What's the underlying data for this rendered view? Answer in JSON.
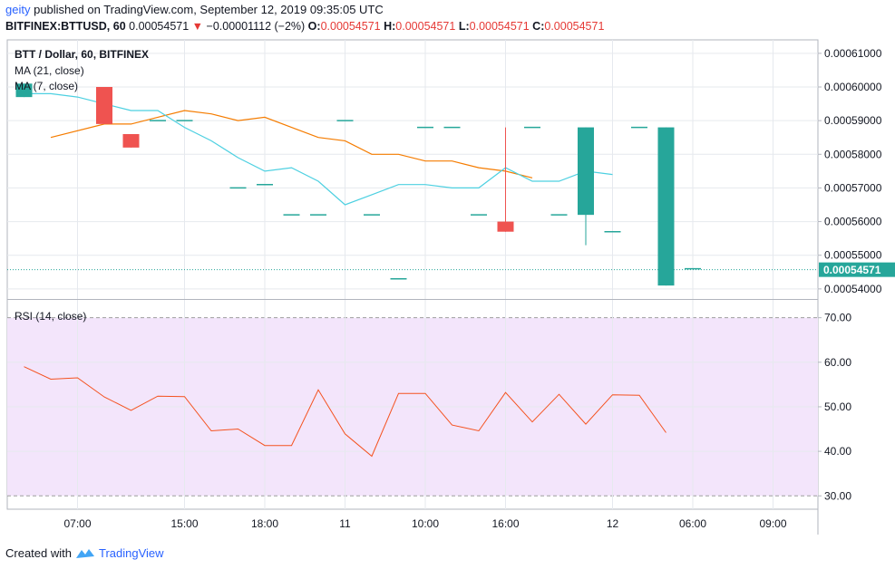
{
  "header": {
    "user": "geity",
    "published_text": "published on TradingView.com, September 12, 2019 09:35:05 UTC",
    "symbol": "BITFINEX:BTTUSD, 60",
    "last_price": "0.00054571",
    "change_arrow": "▼",
    "change": "−0.00001112 (−2%)",
    "o_label": "O:",
    "o_value": "0.00054571",
    "h_label": "H:",
    "h_value": "0.00054571",
    "l_label": "L:",
    "l_value": "0.00054571",
    "c_label": "C:",
    "c_value": "0.00054571"
  },
  "footer": {
    "created_with": "Created with",
    "brand": "TradingView"
  },
  "colors": {
    "up": "#26a69a",
    "down": "#ef5350",
    "ma21": "#f57c00",
    "ma7": "#4dd0e1",
    "rsi": "#f4511e",
    "rsi_band": "#f3e5fb",
    "grid": "#e6e9ee"
  },
  "chart_data": [
    {
      "type": "candlestick",
      "title": "BTT / Dollar, 60, BITFINEX",
      "legend": [
        "MA (21, close)",
        "MA (7, close)"
      ],
      "ylim": [
        0.000537,
        0.000614
      ],
      "y_ticks": [
        "0.00054000",
        "0.00055000",
        "0.00056000",
        "0.00057000",
        "0.00058000",
        "0.00059000",
        "0.00060000",
        "0.00061000"
      ],
      "y_tick_values": [
        0.00054,
        0.00055,
        0.00056,
        0.00057,
        0.00058,
        0.00059,
        0.0006,
        0.00061
      ],
      "x_ticks": [
        "07:00",
        "15:00",
        "18:00",
        "11",
        "10:00",
        "16:00",
        "12",
        "06:00",
        "09:00"
      ],
      "x_tick_index": [
        2,
        6,
        9,
        12,
        15,
        18,
        22,
        25,
        28
      ],
      "last_price_label": "0.00054571",
      "candles": [
        {
          "o": 0.000597,
          "h": 0.000601,
          "l": 0.000597,
          "c": 0.000601
        },
        null,
        null,
        {
          "o": 0.0006,
          "h": 0.0006,
          "l": 0.000589,
          "c": 0.000589
        },
        {
          "o": 0.000586,
          "h": 0.000586,
          "l": 0.000582,
          "c": 0.000582
        },
        {
          "o": 0.00059,
          "h": 0.00059,
          "l": 0.00059,
          "c": 0.00059
        },
        {
          "o": 0.00059,
          "h": 0.00059,
          "l": 0.00059,
          "c": 0.00059
        },
        null,
        {
          "o": 0.00057,
          "h": 0.00057,
          "l": 0.00057,
          "c": 0.00057
        },
        {
          "o": 0.000571,
          "h": 0.000571,
          "l": 0.000571,
          "c": 0.000571
        },
        {
          "o": 0.000562,
          "h": 0.000562,
          "l": 0.000562,
          "c": 0.000562
        },
        {
          "o": 0.000562,
          "h": 0.000562,
          "l": 0.000562,
          "c": 0.000562
        },
        {
          "o": 0.00059,
          "h": 0.00059,
          "l": 0.00059,
          "c": 0.00059
        },
        {
          "o": 0.000562,
          "h": 0.000562,
          "l": 0.000562,
          "c": 0.000562
        },
        {
          "o": 0.000543,
          "h": 0.000543,
          "l": 0.000543,
          "c": 0.000543
        },
        {
          "o": 0.000588,
          "h": 0.000588,
          "l": 0.000588,
          "c": 0.000588
        },
        {
          "o": 0.000588,
          "h": 0.000588,
          "l": 0.000588,
          "c": 0.000588
        },
        {
          "o": 0.000562,
          "h": 0.000562,
          "l": 0.000562,
          "c": 0.000562
        },
        {
          "o": 0.00056,
          "h": 0.000588,
          "l": 0.000557,
          "c": 0.000557
        },
        {
          "o": 0.000588,
          "h": 0.000588,
          "l": 0.000588,
          "c": 0.000588
        },
        {
          "o": 0.000562,
          "h": 0.000562,
          "l": 0.000562,
          "c": 0.000562
        },
        {
          "o": 0.000562,
          "h": 0.000588,
          "l": 0.000553,
          "c": 0.000588
        },
        {
          "o": 0.000557,
          "h": 0.000557,
          "l": 0.000557,
          "c": 0.000557
        },
        {
          "o": 0.000588,
          "h": 0.000588,
          "l": 0.000588,
          "c": 0.000588
        },
        {
          "o": 0.000541,
          "h": 0.000588,
          "l": 0.000541,
          "c": 0.000588
        },
        {
          "o": 0.000546,
          "h": 0.000546,
          "l": 0.000546,
          "c": 0.000546
        }
      ],
      "series": [
        {
          "name": "MA (21, close)",
          "values": [
            null,
            0.000585,
            null,
            0.000589,
            0.000589,
            0.000591,
            0.000593,
            0.000592,
            0.00059,
            0.000591,
            0.000588,
            0.000585,
            0.000584,
            0.00058,
            0.00058,
            0.000578,
            0.000578,
            0.000576,
            0.000575,
            0.000573
          ]
        },
        {
          "name": "MA (7, close)",
          "values": [
            0.000598,
            0.000598,
            0.000597,
            0.000595,
            0.000593,
            0.000593,
            0.000588,
            0.000584,
            0.000579,
            0.000575,
            0.000576,
            0.000572,
            0.000565,
            0.000568,
            0.000571,
            0.000571,
            0.00057,
            0.00057,
            0.000576,
            0.000572,
            0.000572,
            0.000575,
            0.000574
          ]
        }
      ]
    },
    {
      "type": "line",
      "title": "RSI (14, close)",
      "ylim": [
        27,
        74
      ],
      "y_ticks": [
        "30.00",
        "40.00",
        "50.00",
        "60.00",
        "70.00"
      ],
      "y_tick_values": [
        30,
        40,
        50,
        60,
        70
      ],
      "band": [
        30,
        70
      ],
      "series": [
        {
          "values": [
            59,
            56.2,
            56.5,
            52.2,
            49.2,
            52.4,
            52.3,
            44.6,
            45,
            41.3,
            41.3,
            53.8,
            43.9,
            38.9,
            53,
            53,
            45.9,
            44.6,
            53.2,
            46.6,
            52.8,
            46.1,
            52.7,
            52.6,
            44.2
          ]
        }
      ]
    }
  ]
}
